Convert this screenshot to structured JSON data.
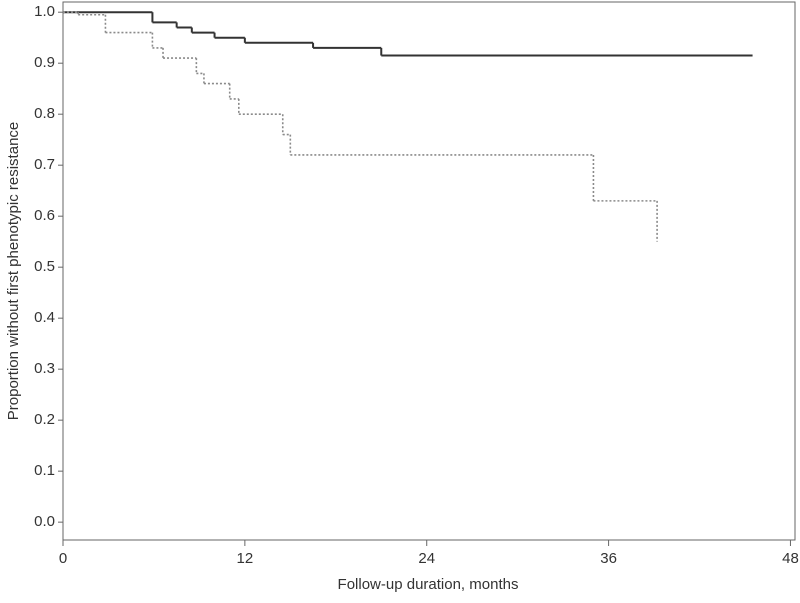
{
  "chart_data": {
    "type": "step",
    "xlabel": "Follow-up duration, months",
    "ylabel": "Proportion without first phenotypic resistance",
    "xlim": [
      0,
      48.3
    ],
    "xticks": [
      0,
      12,
      24,
      36,
      48
    ],
    "ylim": [
      -0.035,
      1.02
    ],
    "yticks": [
      {
        "value": 0,
        "label": "0.0"
      },
      0.1,
      0.2,
      0.3,
      0.4,
      0.5,
      0.6,
      0.7,
      0.8,
      0.9,
      {
        "value": 1,
        "label": "1.0"
      }
    ],
    "series": [
      {
        "color": "#333333",
        "style": "solid",
        "x": [
          0,
          5.9,
          7.5,
          8.5,
          10,
          12,
          16.5,
          21,
          45.5
        ],
        "values": [
          1,
          0.98,
          0.97,
          0.96,
          0.95,
          0.94,
          0.93,
          0.915,
          0.915
        ]
      },
      {
        "color": "#8a8a8a",
        "style": "dotted",
        "x": [
          0,
          1,
          2.8,
          5.9,
          6.6,
          8.8,
          9.3,
          11,
          11.6,
          14.5,
          15,
          35,
          39.2
        ],
        "values": [
          1,
          0.995,
          0.96,
          0.93,
          0.91,
          0.88,
          0.86,
          0.83,
          0.8,
          0.76,
          0.72,
          0.63,
          0.55
        ]
      }
    ]
  }
}
